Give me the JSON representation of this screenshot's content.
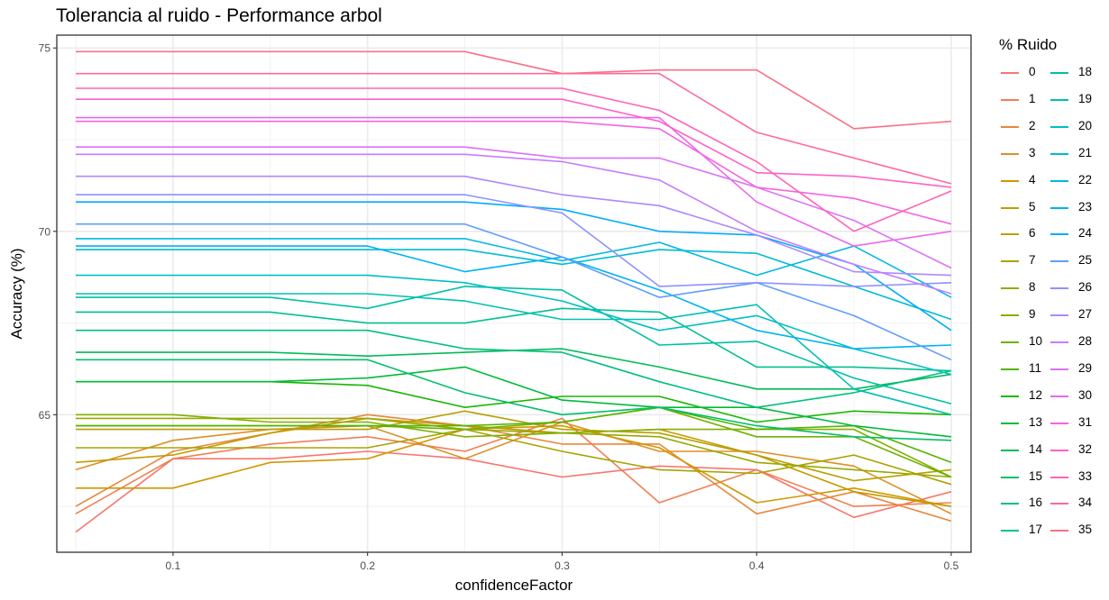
{
  "chart_data": {
    "type": "line",
    "title": "Tolerancia al ruido - Performance arbol",
    "xlabel": "confidenceFactor",
    "ylabel": "Accuracy (%)",
    "xlim": [
      0.05,
      0.5
    ],
    "ylim": [
      61.25,
      75.35
    ],
    "x": [
      0.05,
      0.1,
      0.15,
      0.2,
      0.25,
      0.3,
      0.35,
      0.4,
      0.45,
      0.5
    ],
    "x_ticks": [
      0.1,
      0.2,
      0.3,
      0.4,
      0.5
    ],
    "x_tick_labels": [
      "0.1",
      "0.2",
      "0.3",
      "0.4",
      "0.5"
    ],
    "y_ticks": [
      65,
      70,
      75
    ],
    "y_tick_labels": [
      "65",
      "70",
      "75"
    ],
    "grid": true,
    "legend_title": "% Ruido",
    "legend_position": "right",
    "series": [
      {
        "name": "0",
        "color": "#F8766D",
        "values": [
          61.8,
          63.8,
          63.8,
          64.0,
          63.8,
          63.3,
          63.6,
          63.5,
          62.2,
          62.9
        ]
      },
      {
        "name": "1",
        "color": "#F07F54",
        "values": [
          62.3,
          63.8,
          64.2,
          64.4,
          64.0,
          64.9,
          62.6,
          63.5,
          62.5,
          62.6
        ]
      },
      {
        "name": "2",
        "color": "#E7873D",
        "values": [
          62.5,
          64.0,
          64.5,
          65.0,
          64.7,
          64.2,
          64.2,
          62.3,
          62.9,
          62.1
        ]
      },
      {
        "name": "3",
        "color": "#DD8F24",
        "values": [
          63.5,
          64.3,
          64.6,
          64.7,
          63.8,
          64.8,
          64.0,
          64.0,
          63.6,
          62.3
        ]
      },
      {
        "name": "4",
        "color": "#D19700",
        "values": [
          63.0,
          63.0,
          63.7,
          63.8,
          64.6,
          64.7,
          64.1,
          62.6,
          63.0,
          62.5
        ]
      },
      {
        "name": "5",
        "color": "#C49A00",
        "values": [
          63.7,
          63.9,
          64.5,
          64.9,
          64.7,
          64.5,
          64.6,
          63.9,
          62.9,
          62.5
        ]
      },
      {
        "name": "6",
        "color": "#B79F00",
        "values": [
          64.6,
          64.6,
          64.6,
          64.6,
          65.1,
          64.6,
          64.5,
          63.9,
          63.2,
          63.5
        ]
      },
      {
        "name": "7",
        "color": "#A8A300",
        "values": [
          64.1,
          64.1,
          64.1,
          64.1,
          64.6,
          64.0,
          63.5,
          63.4,
          63.9,
          63.1
        ]
      },
      {
        "name": "8",
        "color": "#97A900",
        "values": [
          64.9,
          64.9,
          64.9,
          64.9,
          64.6,
          64.5,
          64.4,
          63.7,
          63.5,
          63.3
        ]
      },
      {
        "name": "9",
        "color": "#84AE00",
        "values": [
          65.0,
          65.0,
          64.8,
          64.8,
          64.4,
          64.5,
          64.6,
          64.6,
          64.6,
          63.3
        ]
      },
      {
        "name": "10",
        "color": "#6EB200",
        "values": [
          64.7,
          64.7,
          64.7,
          64.7,
          64.6,
          64.8,
          65.2,
          64.4,
          64.4,
          63.3
        ]
      },
      {
        "name": "11",
        "color": "#53B400",
        "values": [
          64.7,
          64.7,
          64.7,
          64.7,
          64.7,
          64.8,
          65.2,
          64.6,
          64.7,
          63.7
        ]
      },
      {
        "name": "12",
        "color": "#19B700",
        "values": [
          65.9,
          65.9,
          65.9,
          65.8,
          65.2,
          65.5,
          65.5,
          64.8,
          65.1,
          65.0
        ]
      },
      {
        "name": "13",
        "color": "#00BA38",
        "values": [
          65.9,
          65.9,
          65.9,
          66.0,
          66.3,
          65.4,
          65.2,
          65.2,
          64.7,
          64.4
        ]
      },
      {
        "name": "14",
        "color": "#00BC56",
        "values": [
          66.7,
          66.7,
          66.7,
          66.6,
          66.7,
          66.8,
          66.3,
          65.7,
          65.7,
          66.1
        ]
      },
      {
        "name": "15",
        "color": "#00BE6C",
        "values": [
          66.5,
          66.5,
          66.5,
          66.5,
          65.6,
          65.0,
          65.2,
          64.7,
          64.4,
          64.3
        ]
      },
      {
        "name": "16",
        "color": "#00BF80",
        "values": [
          67.3,
          67.3,
          67.3,
          67.3,
          66.8,
          66.7,
          65.9,
          65.2,
          65.6,
          66.2
        ]
      },
      {
        "name": "17",
        "color": "#00C092",
        "values": [
          67.8,
          67.8,
          67.8,
          67.5,
          67.5,
          67.9,
          67.8,
          66.3,
          66.3,
          66.2
        ]
      },
      {
        "name": "18",
        "color": "#00C0A3",
        "values": [
          68.2,
          68.2,
          68.2,
          67.9,
          68.5,
          68.4,
          66.9,
          67.0,
          66.0,
          65.3
        ]
      },
      {
        "name": "19",
        "color": "#00C0B3",
        "values": [
          68.3,
          68.3,
          68.3,
          68.3,
          68.1,
          67.6,
          67.6,
          68.0,
          65.7,
          65.0
        ]
      },
      {
        "name": "20",
        "color": "#00BFC4",
        "values": [
          68.8,
          68.8,
          68.8,
          68.8,
          68.6,
          68.1,
          67.3,
          67.7,
          66.8,
          66.1
        ]
      },
      {
        "name": "21",
        "color": "#00BCD4",
        "values": [
          69.5,
          69.5,
          69.5,
          69.5,
          69.5,
          69.1,
          69.5,
          69.4,
          68.5,
          67.6
        ]
      },
      {
        "name": "22",
        "color": "#00B8E3",
        "values": [
          69.8,
          69.8,
          69.8,
          69.8,
          69.8,
          69.2,
          69.7,
          68.8,
          69.6,
          68.2
        ]
      },
      {
        "name": "23",
        "color": "#00B2F1",
        "values": [
          69.6,
          69.6,
          69.6,
          69.6,
          68.9,
          69.3,
          68.4,
          67.3,
          66.8,
          66.9
        ]
      },
      {
        "name": "24",
        "color": "#00ABFD",
        "values": [
          70.8,
          70.8,
          70.8,
          70.8,
          70.8,
          70.6,
          70.0,
          69.9,
          69.1,
          67.3
        ]
      },
      {
        "name": "25",
        "color": "#619CFF",
        "values": [
          70.2,
          70.2,
          70.2,
          70.2,
          70.2,
          69.3,
          68.2,
          68.6,
          67.7,
          66.5
        ]
      },
      {
        "name": "26",
        "color": "#8F91FF",
        "values": [
          71.0,
          71.0,
          71.0,
          71.0,
          71.0,
          70.5,
          68.5,
          68.6,
          68.5,
          68.6
        ]
      },
      {
        "name": "27",
        "color": "#AC88FF",
        "values": [
          71.5,
          71.5,
          71.5,
          71.5,
          71.5,
          71.0,
          70.7,
          69.9,
          68.9,
          68.8
        ]
      },
      {
        "name": "28",
        "color": "#C77CFF",
        "values": [
          72.1,
          72.1,
          72.1,
          72.1,
          72.1,
          71.9,
          71.4,
          70.0,
          69.1,
          68.3
        ]
      },
      {
        "name": "29",
        "color": "#DC71FA",
        "values": [
          72.3,
          72.3,
          72.3,
          72.3,
          72.3,
          72.0,
          72.0,
          71.2,
          70.3,
          69.0
        ]
      },
      {
        "name": "30",
        "color": "#EB67EF",
        "values": [
          73.1,
          73.1,
          73.1,
          73.1,
          73.1,
          73.1,
          73.1,
          70.8,
          69.6,
          70.0
        ]
      },
      {
        "name": "31",
        "color": "#F763E0",
        "values": [
          73.0,
          73.0,
          73.0,
          73.0,
          73.0,
          73.0,
          72.8,
          71.2,
          70.9,
          70.2
        ]
      },
      {
        "name": "32",
        "color": "#FF61CC",
        "values": [
          73.6,
          73.6,
          73.6,
          73.6,
          73.6,
          73.6,
          73.0,
          71.6,
          71.5,
          71.2
        ]
      },
      {
        "name": "33",
        "color": "#FF64B5",
        "values": [
          73.9,
          73.9,
          73.9,
          73.9,
          73.9,
          73.9,
          73.3,
          71.9,
          70.0,
          71.1
        ]
      },
      {
        "name": "34",
        "color": "#FF689E",
        "values": [
          74.3,
          74.3,
          74.3,
          74.3,
          74.3,
          74.3,
          74.3,
          72.7,
          72.0,
          71.3
        ]
      },
      {
        "name": "35",
        "color": "#FC6F86",
        "values": [
          74.9,
          74.9,
          74.9,
          74.9,
          74.9,
          74.3,
          74.4,
          74.4,
          72.8,
          73.0
        ]
      }
    ]
  }
}
